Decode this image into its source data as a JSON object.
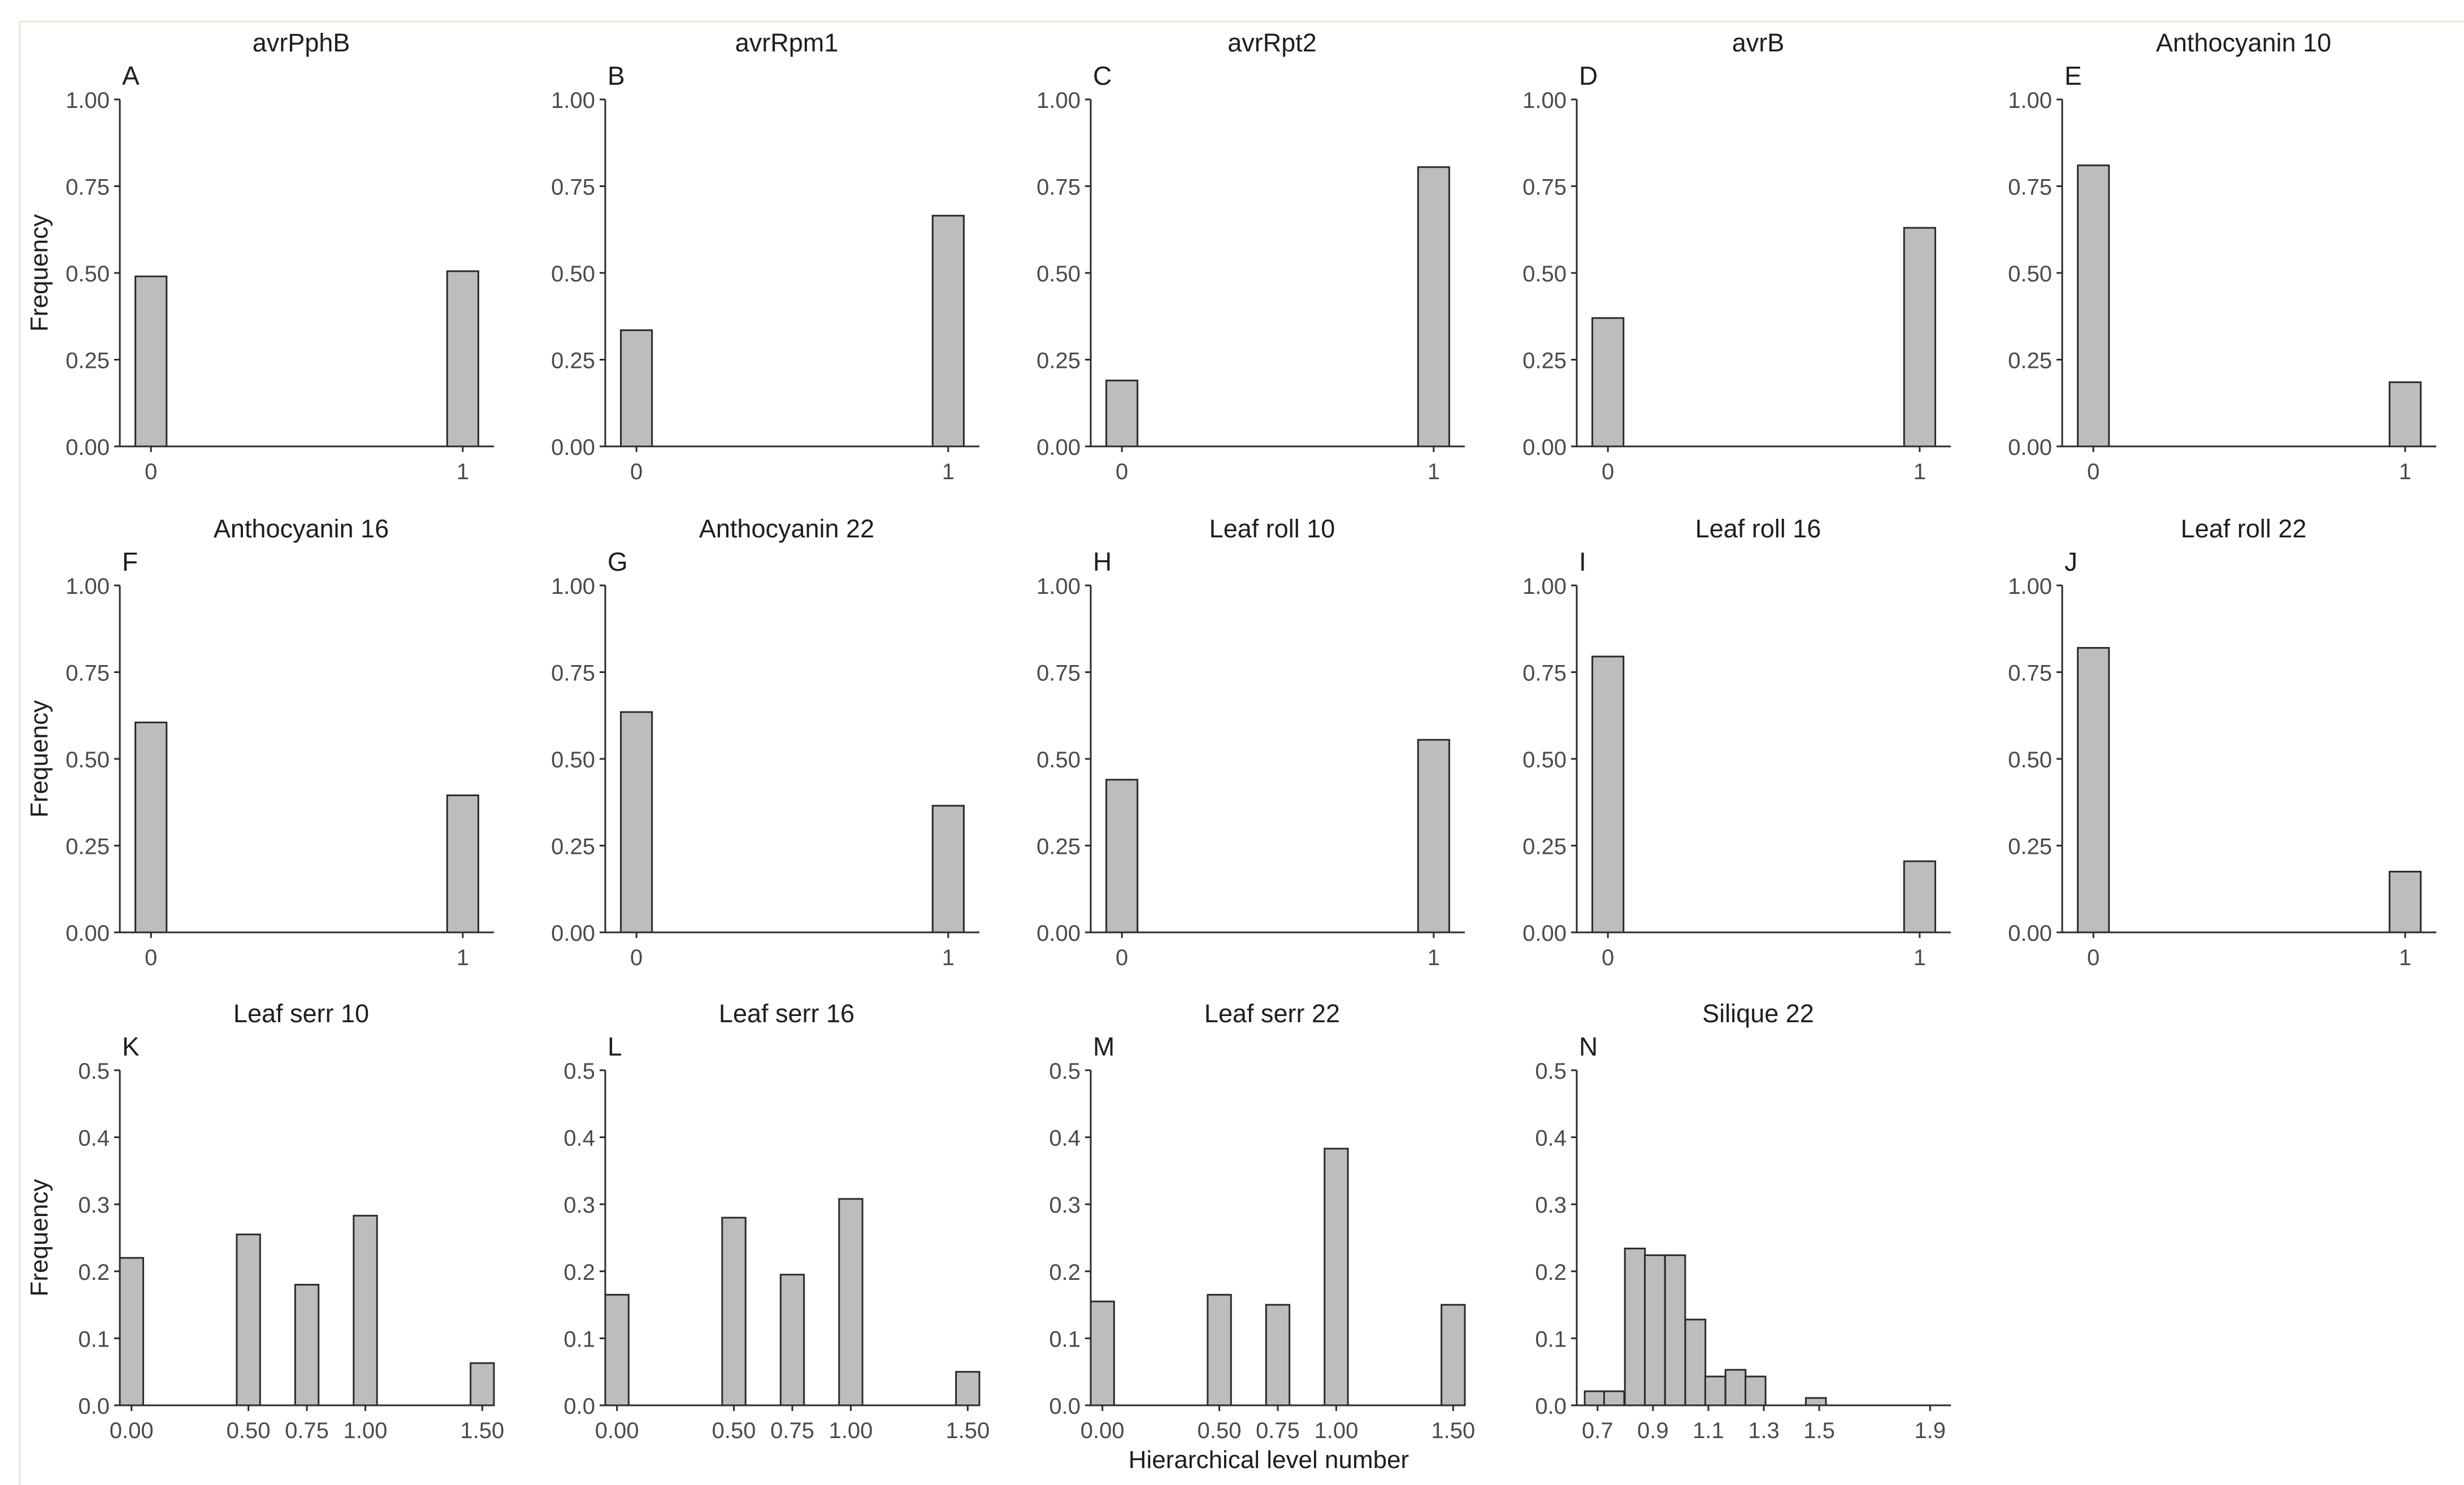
{
  "figure": {
    "x_label": "Hierarchical level number"
  },
  "colors": {
    "bar_fill": "#bdbdbd",
    "bar_stroke": "#2b2b2b",
    "axis": "#2b2b2b",
    "tick_text": "#4a4a4a",
    "title_text": "#1e1e1e",
    "frame": "#e8e4cf"
  },
  "chart_data": [
    {
      "panel": "A",
      "title": "avrPphB",
      "type": "bar",
      "ylabel": "Frequency",
      "ylim": [
        0,
        1
      ],
      "yticks": [
        "0.00",
        "0.25",
        "0.50",
        "0.75",
        "1.00"
      ],
      "xlim": [
        -0.1,
        1.1
      ],
      "xticks": [
        {
          "v": 0,
          "label": "0"
        },
        {
          "v": 1,
          "label": "1"
        }
      ],
      "bin_width": 0.1,
      "bars": [
        {
          "x": 0,
          "y": 0.49
        },
        {
          "x": 1,
          "y": 0.505
        }
      ]
    },
    {
      "panel": "B",
      "title": "avrRpm1",
      "type": "bar",
      "ylabel": "",
      "ylim": [
        0,
        1
      ],
      "yticks": [
        "0.00",
        "0.25",
        "0.50",
        "0.75",
        "1.00"
      ],
      "xlim": [
        -0.1,
        1.1
      ],
      "xticks": [
        {
          "v": 0,
          "label": "0"
        },
        {
          "v": 1,
          "label": "1"
        }
      ],
      "bin_width": 0.1,
      "bars": [
        {
          "x": 0,
          "y": 0.335
        },
        {
          "x": 1,
          "y": 0.665
        }
      ]
    },
    {
      "panel": "C",
      "title": "avrRpt2",
      "type": "bar",
      "ylabel": "",
      "ylim": [
        0,
        1
      ],
      "yticks": [
        "0.00",
        "0.25",
        "0.50",
        "0.75",
        "1.00"
      ],
      "xlim": [
        -0.1,
        1.1
      ],
      "xticks": [
        {
          "v": 0,
          "label": "0"
        },
        {
          "v": 1,
          "label": "1"
        }
      ],
      "bin_width": 0.1,
      "bars": [
        {
          "x": 0,
          "y": 0.19
        },
        {
          "x": 1,
          "y": 0.805
        }
      ]
    },
    {
      "panel": "D",
      "title": "avrB",
      "type": "bar",
      "ylabel": "",
      "ylim": [
        0,
        1
      ],
      "yticks": [
        "0.00",
        "0.25",
        "0.50",
        "0.75",
        "1.00"
      ],
      "xlim": [
        -0.1,
        1.1
      ],
      "xticks": [
        {
          "v": 0,
          "label": "0"
        },
        {
          "v": 1,
          "label": "1"
        }
      ],
      "bin_width": 0.1,
      "bars": [
        {
          "x": 0,
          "y": 0.37
        },
        {
          "x": 1,
          "y": 0.63
        }
      ]
    },
    {
      "panel": "E",
      "title": "Anthocyanin 10",
      "type": "bar",
      "ylabel": "",
      "ylim": [
        0,
        1
      ],
      "yticks": [
        "0.00",
        "0.25",
        "0.50",
        "0.75",
        "1.00"
      ],
      "xlim": [
        -0.1,
        1.1
      ],
      "xticks": [
        {
          "v": 0,
          "label": "0"
        },
        {
          "v": 1,
          "label": "1"
        }
      ],
      "bin_width": 0.1,
      "bars": [
        {
          "x": 0,
          "y": 0.81
        },
        {
          "x": 1,
          "y": 0.185
        }
      ]
    },
    {
      "panel": "F",
      "title": "Anthocyanin 16",
      "type": "bar",
      "ylabel": "Frequency",
      "ylim": [
        0,
        1
      ],
      "yticks": [
        "0.00",
        "0.25",
        "0.50",
        "0.75",
        "1.00"
      ],
      "xlim": [
        -0.1,
        1.1
      ],
      "xticks": [
        {
          "v": 0,
          "label": "0"
        },
        {
          "v": 1,
          "label": "1"
        }
      ],
      "bin_width": 0.1,
      "bars": [
        {
          "x": 0,
          "y": 0.605
        },
        {
          "x": 1,
          "y": 0.395
        }
      ]
    },
    {
      "panel": "G",
      "title": "Anthocyanin 22",
      "type": "bar",
      "ylabel": "",
      "ylim": [
        0,
        1
      ],
      "yticks": [
        "0.00",
        "0.25",
        "0.50",
        "0.75",
        "1.00"
      ],
      "xlim": [
        -0.1,
        1.1
      ],
      "xticks": [
        {
          "v": 0,
          "label": "0"
        },
        {
          "v": 1,
          "label": "1"
        }
      ],
      "bin_width": 0.1,
      "bars": [
        {
          "x": 0,
          "y": 0.635
        },
        {
          "x": 1,
          "y": 0.365
        }
      ]
    },
    {
      "panel": "H",
      "title": "Leaf roll 10",
      "type": "bar",
      "ylabel": "",
      "ylim": [
        0,
        1
      ],
      "yticks": [
        "0.00",
        "0.25",
        "0.50",
        "0.75",
        "1.00"
      ],
      "xlim": [
        -0.1,
        1.1
      ],
      "xticks": [
        {
          "v": 0,
          "label": "0"
        },
        {
          "v": 1,
          "label": "1"
        }
      ],
      "bin_width": 0.1,
      "bars": [
        {
          "x": 0,
          "y": 0.44
        },
        {
          "x": 1,
          "y": 0.555
        }
      ]
    },
    {
      "panel": "I",
      "title": "Leaf roll 16",
      "type": "bar",
      "ylabel": "",
      "ylim": [
        0,
        1
      ],
      "yticks": [
        "0.00",
        "0.25",
        "0.50",
        "0.75",
        "1.00"
      ],
      "xlim": [
        -0.1,
        1.1
      ],
      "xticks": [
        {
          "v": 0,
          "label": "0"
        },
        {
          "v": 1,
          "label": "1"
        }
      ],
      "bin_width": 0.1,
      "bars": [
        {
          "x": 0,
          "y": 0.795
        },
        {
          "x": 1,
          "y": 0.205
        }
      ]
    },
    {
      "panel": "J",
      "title": "Leaf roll 22",
      "type": "bar",
      "ylabel": "",
      "ylim": [
        0,
        1
      ],
      "yticks": [
        "0.00",
        "0.25",
        "0.50",
        "0.75",
        "1.00"
      ],
      "xlim": [
        -0.1,
        1.1
      ],
      "xticks": [
        {
          "v": 0,
          "label": "0"
        },
        {
          "v": 1,
          "label": "1"
        }
      ],
      "bin_width": 0.1,
      "bars": [
        {
          "x": 0,
          "y": 0.82
        },
        {
          "x": 1,
          "y": 0.175
        }
      ]
    },
    {
      "panel": "K",
      "title": "Leaf serr 10",
      "type": "bar",
      "ylabel": "Frequency",
      "ylim": [
        0,
        0.5
      ],
      "yticks": [
        "0.0",
        "0.1",
        "0.2",
        "0.3",
        "0.4",
        "0.5"
      ],
      "xlim": [
        -0.05,
        1.55
      ],
      "xticks": [
        {
          "v": 0,
          "label": "0.00"
        },
        {
          "v": 0.5,
          "label": "0.50"
        },
        {
          "v": 0.75,
          "label": "0.75"
        },
        {
          "v": 1.0,
          "label": "1.00"
        },
        {
          "v": 1.5,
          "label": "1.50"
        }
      ],
      "bin_width": 0.1,
      "bars": [
        {
          "x": 0,
          "y": 0.22
        },
        {
          "x": 0.5,
          "y": 0.255
        },
        {
          "x": 0.75,
          "y": 0.18
        },
        {
          "x": 1.0,
          "y": 0.283
        },
        {
          "x": 1.5,
          "y": 0.063
        }
      ]
    },
    {
      "panel": "L",
      "title": "Leaf serr 16",
      "type": "bar",
      "ylabel": "",
      "ylim": [
        0,
        0.5
      ],
      "yticks": [
        "0.0",
        "0.1",
        "0.2",
        "0.3",
        "0.4",
        "0.5"
      ],
      "xlim": [
        -0.05,
        1.55
      ],
      "xticks": [
        {
          "v": 0,
          "label": "0.00"
        },
        {
          "v": 0.5,
          "label": "0.50"
        },
        {
          "v": 0.75,
          "label": "0.75"
        },
        {
          "v": 1.0,
          "label": "1.00"
        },
        {
          "v": 1.5,
          "label": "1.50"
        }
      ],
      "bin_width": 0.1,
      "bars": [
        {
          "x": 0,
          "y": 0.165
        },
        {
          "x": 0.5,
          "y": 0.28
        },
        {
          "x": 0.75,
          "y": 0.195
        },
        {
          "x": 1.0,
          "y": 0.308
        },
        {
          "x": 1.5,
          "y": 0.05
        }
      ]
    },
    {
      "panel": "M",
      "title": "Leaf serr 22",
      "type": "bar",
      "ylabel": "",
      "ylim": [
        0,
        0.5
      ],
      "yticks": [
        "0.0",
        "0.1",
        "0.2",
        "0.3",
        "0.4",
        "0.5"
      ],
      "xlim": [
        -0.05,
        1.55
      ],
      "xticks": [
        {
          "v": 0,
          "label": "0.00"
        },
        {
          "v": 0.5,
          "label": "0.50"
        },
        {
          "v": 0.75,
          "label": "0.75"
        },
        {
          "v": 1.0,
          "label": "1.00"
        },
        {
          "v": 1.5,
          "label": "1.50"
        }
      ],
      "bin_width": 0.1,
      "bars": [
        {
          "x": 0,
          "y": 0.155
        },
        {
          "x": 0.5,
          "y": 0.165
        },
        {
          "x": 0.75,
          "y": 0.15
        },
        {
          "x": 1.0,
          "y": 0.383
        },
        {
          "x": 1.5,
          "y": 0.15
        }
      ]
    },
    {
      "panel": "N",
      "title": "Silique 22",
      "type": "bar",
      "ylabel": "",
      "ylim": [
        0,
        0.5
      ],
      "yticks": [
        "0.0",
        "0.1",
        "0.2",
        "0.3",
        "0.4",
        "0.5"
      ],
      "xlim": [
        0.625,
        1.975
      ],
      "xticks": [
        {
          "v": 0.7,
          "label": "0.7"
        },
        {
          "v": 0.9,
          "label": "0.9"
        },
        {
          "v": 1.1,
          "label": "1.1"
        },
        {
          "v": 1.3,
          "label": "1.3"
        },
        {
          "v": 1.5,
          "label": "1.5"
        },
        {
          "v": 1.9,
          "label": "1.9"
        }
      ],
      "bin_width": 0.0725,
      "bars": [
        {
          "x": 0.69,
          "y": 0.021
        },
        {
          "x": 0.76,
          "y": 0.021
        },
        {
          "x": 0.835,
          "y": 0.234
        },
        {
          "x": 0.907,
          "y": 0.224
        },
        {
          "x": 0.98,
          "y": 0.224
        },
        {
          "x": 1.053,
          "y": 0.128
        },
        {
          "x": 1.125,
          "y": 0.043
        },
        {
          "x": 1.198,
          "y": 0.053
        },
        {
          "x": 1.27,
          "y": 0.043
        },
        {
          "x": 1.488,
          "y": 0.011
        }
      ]
    }
  ]
}
